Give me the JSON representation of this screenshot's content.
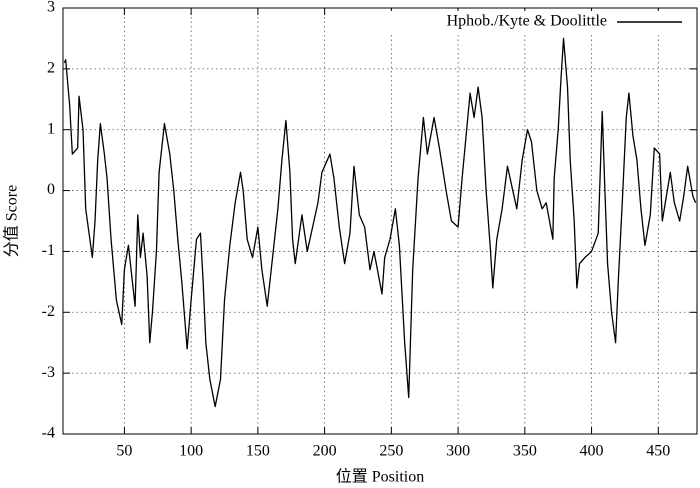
{
  "chart_data": {
    "type": "line",
    "xlabel": "位置  Position",
    "ylabel": "分值  Score",
    "x": [
      5,
      6,
      9,
      11,
      15,
      16,
      19,
      21,
      26,
      28,
      30,
      32,
      35,
      37,
      40,
      44,
      48,
      50,
      53,
      56,
      58,
      60,
      62,
      64,
      67,
      69,
      71,
      74,
      76,
      80,
      84,
      87,
      90,
      93,
      97,
      100,
      104,
      107,
      109,
      111,
      114,
      118,
      122,
      125,
      129,
      133,
      137,
      139,
      142,
      146,
      150,
      153,
      157,
      160,
      165,
      168,
      171,
      174,
      176,
      178,
      183,
      187,
      191,
      195,
      198,
      204,
      207,
      211,
      215,
      219,
      222,
      226,
      230,
      234,
      237,
      243,
      245,
      249,
      253,
      256,
      260,
      263,
      266,
      270,
      274,
      277,
      282,
      286,
      291,
      295,
      300,
      303,
      309,
      312,
      315,
      318,
      321,
      324,
      326,
      329,
      333,
      337,
      340,
      344,
      348,
      352,
      355,
      359,
      363,
      366,
      371,
      372,
      375,
      377,
      379,
      382,
      384,
      387,
      389,
      391,
      395,
      400,
      405,
      408,
      410,
      412,
      415,
      418,
      420,
      423,
      426,
      428,
      431,
      434,
      437,
      440,
      444,
      447,
      451,
      453,
      456,
      459,
      462,
      466,
      469,
      472,
      476,
      478
    ],
    "series": [
      {
        "name": "Hphob./Kyte & Doolittle",
        "color": "#000000",
        "values": [
          2.1,
          2.15,
          1.4,
          0.6,
          0.7,
          1.55,
          1.0,
          -0.3,
          -1.1,
          -0.5,
          0.5,
          1.1,
          0.6,
          0.2,
          -0.8,
          -1.8,
          -2.2,
          -1.3,
          -0.9,
          -1.5,
          -1.9,
          -0.4,
          -1.1,
          -0.7,
          -1.4,
          -2.5,
          -2.0,
          -1.0,
          0.3,
          1.1,
          0.6,
          0.0,
          -0.8,
          -1.5,
          -2.6,
          -1.8,
          -0.8,
          -0.7,
          -1.5,
          -2.5,
          -3.1,
          -3.55,
          -3.1,
          -1.8,
          -0.9,
          -0.2,
          0.3,
          0.0,
          -0.8,
          -1.1,
          -0.6,
          -1.3,
          -1.9,
          -1.3,
          -0.3,
          0.5,
          1.15,
          0.3,
          -0.8,
          -1.2,
          -0.4,
          -1.0,
          -0.6,
          -0.2,
          0.3,
          0.6,
          0.2,
          -0.6,
          -1.2,
          -0.7,
          0.4,
          -0.4,
          -0.6,
          -1.3,
          -1.0,
          -1.7,
          -1.1,
          -0.8,
          -0.3,
          -0.9,
          -2.5,
          -3.4,
          -1.3,
          0.2,
          1.2,
          0.6,
          1.2,
          0.7,
          0.0,
          -0.5,
          -0.6,
          0.2,
          1.6,
          1.2,
          1.7,
          1.2,
          0.0,
          -0.9,
          -1.6,
          -0.8,
          -0.3,
          0.4,
          0.1,
          -0.3,
          0.5,
          1.0,
          0.8,
          0.0,
          -0.3,
          -0.2,
          -0.8,
          0.2,
          1.0,
          1.8,
          2.5,
          1.7,
          0.5,
          -0.5,
          -1.6,
          -1.2,
          -1.1,
          -1.0,
          -0.7,
          1.3,
          0.0,
          -1.2,
          -2.0,
          -2.5,
          -1.5,
          -0.2,
          1.2,
          1.6,
          0.9,
          0.5,
          -0.3,
          -0.9,
          -0.4,
          0.7,
          0.6,
          -0.5,
          -0.1,
          0.3,
          -0.2,
          -0.5,
          -0.1,
          0.4,
          -0.1,
          -0.2
        ]
      }
    ],
    "xlim": [
      4,
      479
    ],
    "ylim": [
      -4,
      3
    ],
    "xticks": [
      50,
      100,
      150,
      200,
      250,
      300,
      350,
      400,
      450
    ],
    "yticks": [
      -4,
      -3,
      -2,
      -1,
      0,
      1,
      2,
      3
    ],
    "grid": true,
    "legend": "top-right"
  }
}
